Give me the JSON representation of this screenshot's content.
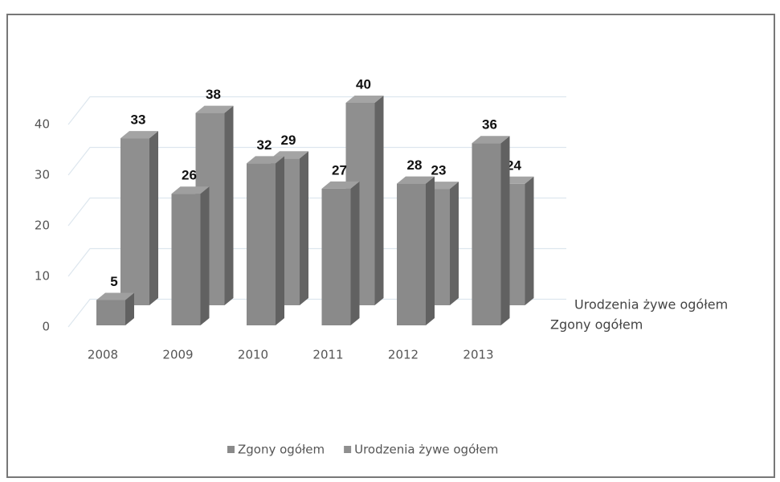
{
  "chart_data": {
    "type": "bar",
    "categories": [
      "2008",
      "2009",
      "2010",
      "2011",
      "2012",
      "2013"
    ],
    "series": [
      {
        "name": "Zgony ogółem",
        "color": "#8a8a8a",
        "values": [
          5,
          26,
          32,
          27,
          28,
          36
        ]
      },
      {
        "name": "Urodzenia żywe ogółem",
        "color": "#8f8f8f",
        "values": [
          33,
          38,
          29,
          40,
          23,
          24
        ]
      }
    ],
    "ylim": [
      0,
      40
    ],
    "yticks": [
      0,
      10,
      20,
      30,
      40
    ],
    "grid": true,
    "legend": "bottom"
  }
}
